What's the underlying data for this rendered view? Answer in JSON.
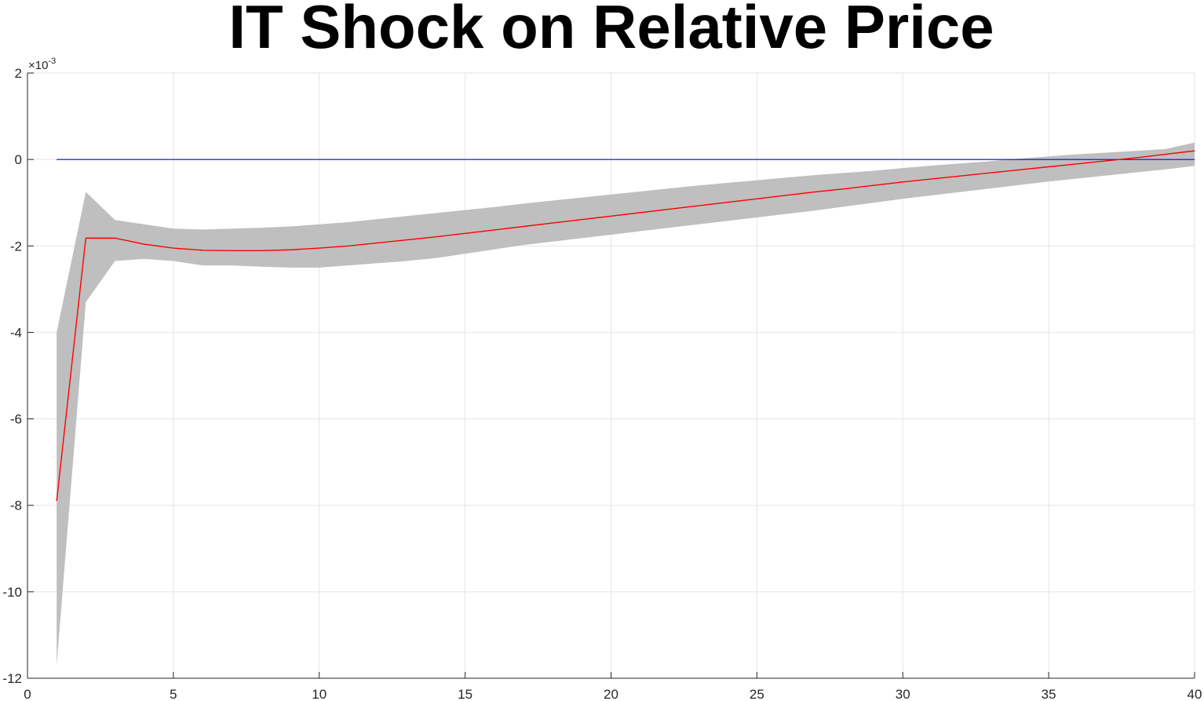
{
  "chart_data": {
    "type": "line",
    "title": "IT Shock on Relative Price",
    "xlabel": "",
    "ylabel": "",
    "xlim": [
      0,
      40
    ],
    "ylim": [
      -0.012,
      0.002
    ],
    "y_exponent_label": "×10",
    "y_exponent_power": "-3",
    "x_ticks": [
      0,
      5,
      10,
      15,
      20,
      25,
      30,
      35,
      40
    ],
    "x_tick_labels": [
      "0",
      "5",
      "10",
      "15",
      "20",
      "25",
      "30",
      "35",
      "40"
    ],
    "y_ticks": [
      2,
      0,
      -2,
      -4,
      -6,
      -8,
      -10,
      -12
    ],
    "y_tick_labels": [
      "2",
      "0",
      "-2",
      "-4",
      "-6",
      "-8",
      "-10",
      "-12"
    ],
    "grid": true,
    "x": [
      1,
      2,
      3,
      4,
      5,
      6,
      7,
      8,
      9,
      10,
      11,
      12,
      13,
      14,
      15,
      16,
      17,
      18,
      19,
      20,
      21,
      22,
      23,
      24,
      25,
      26,
      27,
      28,
      29,
      30,
      31,
      32,
      33,
      34,
      35,
      36,
      37,
      38,
      39,
      40
    ],
    "series": [
      {
        "role": "band-upper",
        "color": "#bfbfbf",
        "values": [
          -0.004,
          -0.00075,
          -0.0014,
          -0.0015,
          -0.0016,
          -0.00162,
          -0.0016,
          -0.00158,
          -0.00155,
          -0.0015,
          -0.00145,
          -0.00138,
          -0.00131,
          -0.00124,
          -0.00117,
          -0.0011,
          -0.00102,
          -0.00095,
          -0.00088,
          -0.00081,
          -0.00074,
          -0.00067,
          -0.0006,
          -0.00054,
          -0.00048,
          -0.00042,
          -0.00036,
          -0.00031,
          -0.00026,
          -0.0002,
          -0.00014,
          -9e-05,
          -4e-05,
          2e-05,
          7e-05,
          0.00012,
          0.00016,
          0.0002,
          0.00024,
          0.00039
        ]
      },
      {
        "role": "band-lower",
        "color": "#bfbfbf",
        "values": [
          -0.0117,
          -0.0033,
          -0.00235,
          -0.0023,
          -0.00235,
          -0.00245,
          -0.00245,
          -0.00248,
          -0.0025,
          -0.0025,
          -0.00245,
          -0.0024,
          -0.00235,
          -0.00228,
          -0.00218,
          -0.00208,
          -0.00198,
          -0.0019,
          -0.00182,
          -0.00174,
          -0.00166,
          -0.00158,
          -0.0015,
          -0.00142,
          -0.00134,
          -0.00126,
          -0.00118,
          -0.00109,
          -0.001,
          -0.00091,
          -0.00083,
          -0.00075,
          -0.00067,
          -0.00059,
          -0.00051,
          -0.00044,
          -0.00037,
          -0.0003,
          -0.00023,
          -0.00015
        ]
      },
      {
        "role": "response",
        "color": "#ff0000",
        "values": [
          -0.0079,
          -0.00182,
          -0.00182,
          -0.00196,
          -0.00205,
          -0.0021,
          -0.00211,
          -0.00211,
          -0.00209,
          -0.00205,
          -0.002,
          -0.00193,
          -0.00186,
          -0.00179,
          -0.00171,
          -0.00163,
          -0.00155,
          -0.00147,
          -0.00139,
          -0.00131,
          -0.00123,
          -0.00115,
          -0.00107,
          -0.00099,
          -0.00091,
          -0.00083,
          -0.00075,
          -0.00068,
          -0.0006,
          -0.00052,
          -0.00045,
          -0.00038,
          -0.00031,
          -0.00024,
          -0.00017,
          -0.0001,
          -3e-05,
          4e-05,
          0.00012,
          0.0002
        ]
      },
      {
        "role": "zero-line",
        "color": "#0000ff",
        "values": [
          0,
          0,
          0,
          0,
          0,
          0,
          0,
          0,
          0,
          0,
          0,
          0,
          0,
          0,
          0,
          0,
          0,
          0,
          0,
          0,
          0,
          0,
          0,
          0,
          0,
          0,
          0,
          0,
          0,
          0,
          0,
          0,
          0,
          0,
          0,
          0,
          0,
          0,
          0,
          0
        ]
      }
    ]
  }
}
